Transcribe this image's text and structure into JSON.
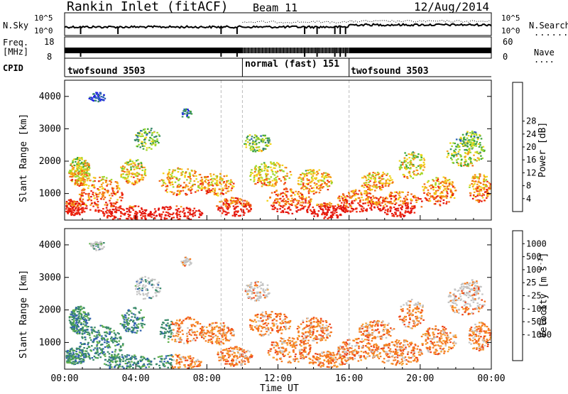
{
  "header": {
    "radar_title": "Rankin Inlet (fitACF)",
    "beam": "Beam 11",
    "date": "12/Aug/2014"
  },
  "strip_labels": {
    "nsky": "N.Sky",
    "nsky_tick_top": "10^5",
    "nsky_tick_bottom": "10^0",
    "nsky_right_tick_top": "10^5",
    "nsky_right_tick_bottom": "10^0",
    "nsearch": "N.Search",
    "nsearch_dots": "........",
    "freq": "Freq.",
    "freq_unit": "[MHz]",
    "freq_tick_top": "18",
    "freq_tick_bottom": "8",
    "nave_tick_top": "60",
    "nave_tick_bottom": "0",
    "nave": "Nave",
    "nave_dots": "....",
    "cpid": "CPID"
  },
  "cpid_segments": [
    {
      "label": "twofsound 3503",
      "start_hour": 0,
      "end_hour": 10
    },
    {
      "label": "normal (fast) 151",
      "start_hour": 10,
      "end_hour": 16
    },
    {
      "label": "twofsound 3503",
      "start_hour": 16,
      "end_hour": 24
    }
  ],
  "chart_data": [
    {
      "type": "heatmap",
      "panel": "power",
      "xlabel": "",
      "ylabel": "Slant Range [km]",
      "ylim": [
        180,
        4500
      ],
      "yticks": [
        "1000",
        "2000",
        "3000",
        "4000"
      ],
      "xlim_hours": [
        0,
        24
      ],
      "colorbar_label": "Power [dB]",
      "colorbar_ticks": [
        "4",
        "8",
        "12",
        "16",
        "20",
        "24",
        "28"
      ],
      "colorbar_colors": [
        "#1e1ee6",
        "#2a5fb8",
        "#3a8a6a",
        "#3fa838",
        "#9fd82c",
        "#f2d41a",
        "#f5a21a",
        "#f26a14",
        "#ee2a10",
        "#e0100c"
      ]
    },
    {
      "type": "heatmap",
      "panel": "velocity",
      "xlabel": "Time UT",
      "ylabel": "Slant Range [km]",
      "ylim": [
        180,
        4500
      ],
      "yticks": [
        "1000",
        "2000",
        "3000",
        "4000"
      ],
      "xticks": [
        "00:00",
        "04:00",
        "08:00",
        "12:00",
        "16:00",
        "20:00",
        "00:00"
      ],
      "xlim_hours": [
        0,
        24
      ],
      "colorbar_label": "Velocity [m s",
      "colorbar_label_sup": "-1",
      "colorbar_label_end": "]",
      "colorbar_ticks": [
        "1000",
        "500",
        "100",
        "25",
        "-25",
        "-100",
        "-500",
        "-1000"
      ],
      "colorbar_colors": [
        "#2a3fb0",
        "#3060b0",
        "#3a8a6a",
        "#5fb04a",
        "#9cd84a",
        "#c8c8c8",
        "#f5a030",
        "#f57a20",
        "#ee4418",
        "#e0100c"
      ]
    }
  ],
  "time_axis": {
    "ticks": [
      "00:00",
      "04:00",
      "08:00",
      "12:00",
      "16:00",
      "20:00",
      "00:00"
    ],
    "label": "Time UT"
  },
  "colors": {
    "mode_change_line": "#bbbbbb",
    "ground_scatter": "#c0c0c0"
  }
}
